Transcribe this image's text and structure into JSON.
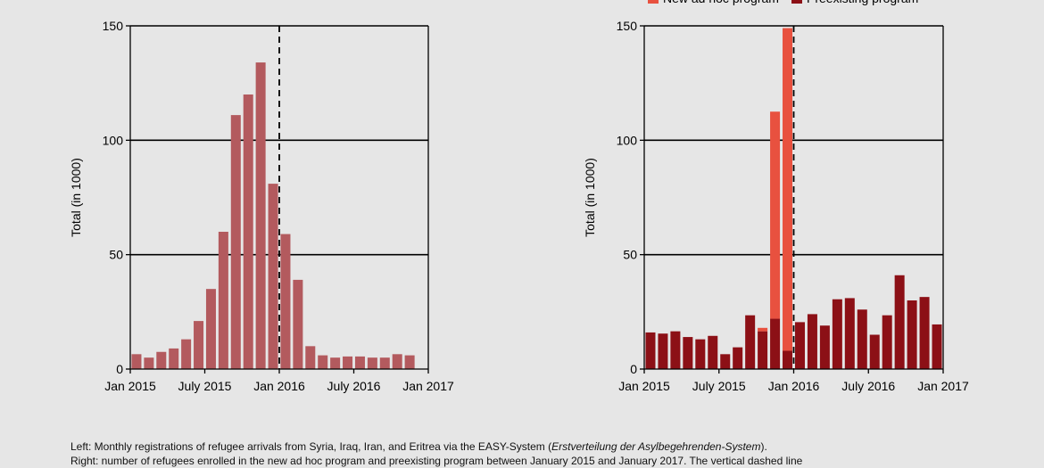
{
  "colors": {
    "background": "#e6e6e6",
    "left_bar": "#b35a5e",
    "new_program": "#e8513f",
    "preexisting_program": "#8c1016",
    "axis": "#000000"
  },
  "caption": {
    "line1_a": "Left: Monthly registrations of refugee arrivals from Syria, Iraq, Iran, and Eritrea via the EASY-System (",
    "line1_em": "Erstverteilung der Asylbegehrenden-System",
    "line1_b": ").",
    "line2": "Right: number of refugees enrolled in the new ad hoc program and preexisting program between January 2015 and January 2017. The vertical dashed line"
  },
  "chart_data": [
    {
      "type": "bar",
      "id": "left",
      "title": "",
      "xlabel": "",
      "ylabel": "Total (in 1000)",
      "ylim": [
        0,
        150
      ],
      "yticks": [
        0,
        50,
        100,
        150
      ],
      "xtick_labels": [
        "Jan 2015",
        "July 2015",
        "Jan 2016",
        "July 2016",
        "Jan 2017"
      ],
      "xtick_months": [
        0,
        6,
        12,
        18,
        24
      ],
      "vline_month": 12,
      "grid": "horizontal",
      "categories_start": "Jan 2015",
      "values": [
        6.5,
        5,
        7.5,
        9,
        13,
        21,
        35,
        60,
        111,
        120,
        134,
        81,
        59,
        39,
        10,
        6,
        5,
        5.5,
        5.5,
        5,
        5,
        6.5,
        6
      ]
    },
    {
      "type": "bar",
      "id": "right",
      "stacked": true,
      "title": "",
      "xlabel": "",
      "ylabel": "Total (in 1000)",
      "ylim": [
        0,
        150
      ],
      "yticks": [
        0,
        50,
        100,
        150
      ],
      "xtick_labels": [
        "Jan 2015",
        "July 2015",
        "Jan 2016",
        "July 2016",
        "Jan 2017"
      ],
      "xtick_months": [
        0,
        6,
        12,
        18,
        24
      ],
      "vline_month": 12,
      "grid": "horizontal",
      "legend": "top",
      "categories_start": "Jan 2015",
      "series": [
        {
          "name": "Preexisting program",
          "color": "#8c1016",
          "values": [
            16,
            15.5,
            16.5,
            14,
            13,
            14.5,
            6.5,
            9.5,
            23.5,
            16.5,
            22,
            8,
            20.5,
            24,
            19,
            30.5,
            31,
            26,
            15,
            23.5,
            41,
            30,
            31.5,
            19.5
          ]
        },
        {
          "name": "New ad hoc program",
          "color": "#e8513f",
          "values": [
            0,
            0,
            0,
            0,
            0,
            0,
            0,
            0,
            0,
            1.5,
            90.5,
            141,
            0,
            0,
            0,
            0,
            0,
            0,
            0,
            0,
            0,
            0,
            0,
            0
          ]
        }
      ]
    }
  ]
}
